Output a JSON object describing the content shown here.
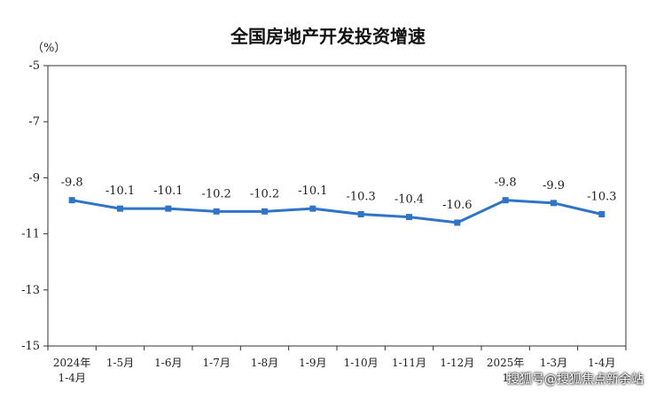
{
  "chart_data": {
    "type": "line",
    "title": "全国房地产开发投资增速",
    "ylabel": "（%）",
    "ylim": [
      -15,
      -5
    ],
    "yticks": [
      -5,
      -7,
      -9,
      -11,
      -13,
      -15
    ],
    "categories": [
      [
        "2024年",
        "1-4月"
      ],
      [
        "1-5月"
      ],
      [
        "1-6月"
      ],
      [
        "1-7月"
      ],
      [
        "1-8月"
      ],
      [
        "1-9月"
      ],
      [
        "1-10月"
      ],
      [
        "1-11月"
      ],
      [
        "1-12月"
      ],
      [
        "2025年",
        "1"
      ],
      [
        "1-3月"
      ],
      [
        "1-4月"
      ]
    ],
    "values": [
      -9.8,
      -10.1,
      -10.1,
      -10.2,
      -10.2,
      -10.1,
      -10.3,
      -10.4,
      -10.6,
      -9.8,
      -9.9,
      -10.3
    ],
    "data_labels": [
      "-9.8",
      "-10.1",
      "-10.1",
      "-10.2",
      "-10.2",
      "-10.1",
      "-10.3",
      "-10.4",
      "-10.6",
      "-9.8",
      "-9.9",
      "-10.3"
    ],
    "line_color": "#2f74c9",
    "grid": false
  },
  "watermark": "搜狐号@搜狐焦点新余站"
}
